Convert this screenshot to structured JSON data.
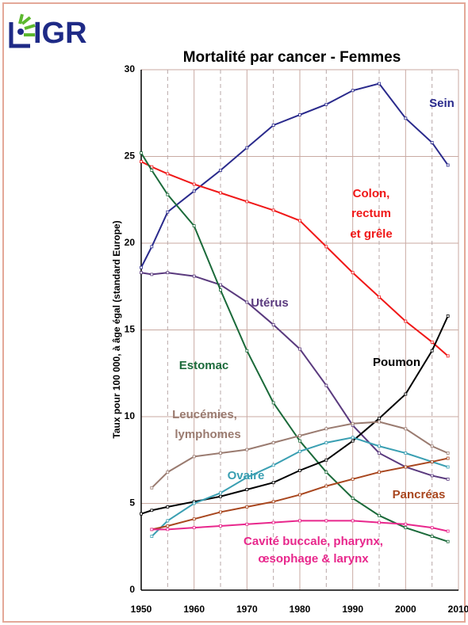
{
  "logo": "IGR",
  "chart_data": {
    "type": "line",
    "title": "Mortalité par cancer - Femmes",
    "y_label": "Taux pour 100 000, à âge égal (standard Europe)",
    "x": [
      1950,
      1952,
      1955,
      1960,
      1965,
      1970,
      1975,
      1980,
      1985,
      1990,
      1995,
      2000,
      2005,
      2008
    ],
    "xlim": [
      1950,
      2010
    ],
    "ylim": [
      0,
      30
    ],
    "xticks": [
      1950,
      1960,
      1970,
      1980,
      1990,
      2000,
      2010
    ],
    "xminorticks": [
      1955,
      1965,
      1975,
      1985,
      1995,
      2005
    ],
    "yticks": [
      0,
      5,
      10,
      15,
      20,
      25,
      30
    ],
    "grid": true,
    "series": [
      {
        "name": [
          "Sein"
        ],
        "color": "#2a2a8c",
        "values": [
          18.6,
          19.8,
          21.8,
          23.0,
          24.2,
          25.5,
          26.8,
          27.4,
          28.0,
          28.8,
          29.2,
          27.2,
          25.8,
          24.5
        ]
      },
      {
        "name": [
          "Colon,",
          "rectum",
          "et grêle"
        ],
        "color": "#f01818",
        "values": [
          24.7,
          24.4,
          24.0,
          23.4,
          22.9,
          22.4,
          21.9,
          21.3,
          19.8,
          18.3,
          16.9,
          15.5,
          14.3,
          13.5
        ]
      },
      {
        "name": [
          "Utérus"
        ],
        "color": "#5a3a7e",
        "values": [
          18.3,
          18.2,
          18.3,
          18.1,
          17.6,
          16.6,
          15.3,
          13.9,
          11.8,
          9.5,
          7.9,
          7.1,
          6.6,
          6.4
        ]
      },
      {
        "name": [
          "Estomac"
        ],
        "color": "#1b6a3a",
        "values": [
          25.2,
          24.2,
          22.8,
          21.0,
          17.3,
          13.8,
          10.8,
          8.6,
          6.8,
          5.3,
          4.3,
          3.6,
          3.1,
          2.8
        ]
      },
      {
        "name": [
          "Poumon"
        ],
        "color": "#000000",
        "values": [
          4.4,
          4.6,
          4.8,
          5.1,
          5.4,
          5.8,
          6.2,
          6.9,
          7.5,
          8.6,
          9.9,
          11.3,
          13.8,
          15.8
        ]
      },
      {
        "name": [
          "Leucémies,",
          "lymphomes"
        ],
        "color": "#9a7b70",
        "values": [
          null,
          5.9,
          6.8,
          7.7,
          7.9,
          8.1,
          8.5,
          8.9,
          9.3,
          9.6,
          9.7,
          9.3,
          8.3,
          7.9
        ]
      },
      {
        "name": [
          "Ovaire"
        ],
        "color": "#3a9fb2",
        "values": [
          null,
          3.1,
          4.0,
          5.0,
          5.6,
          6.5,
          7.2,
          8.0,
          8.5,
          8.8,
          8.3,
          7.9,
          7.4,
          7.1
        ]
      },
      {
        "name": [
          "Pancréas"
        ],
        "color": "#a8461e",
        "values": [
          null,
          3.5,
          3.7,
          4.1,
          4.5,
          4.8,
          5.1,
          5.5,
          6.0,
          6.4,
          6.8,
          7.1,
          7.4,
          7.6
        ]
      },
      {
        "name": [
          "Cavité buccale, pharynx,",
          "œsophage & larynx"
        ],
        "color": "#e8278c",
        "values": [
          null,
          3.5,
          3.5,
          3.6,
          3.7,
          3.8,
          3.9,
          4.0,
          4.0,
          4.0,
          3.9,
          3.8,
          3.6,
          3.4
        ]
      }
    ]
  }
}
